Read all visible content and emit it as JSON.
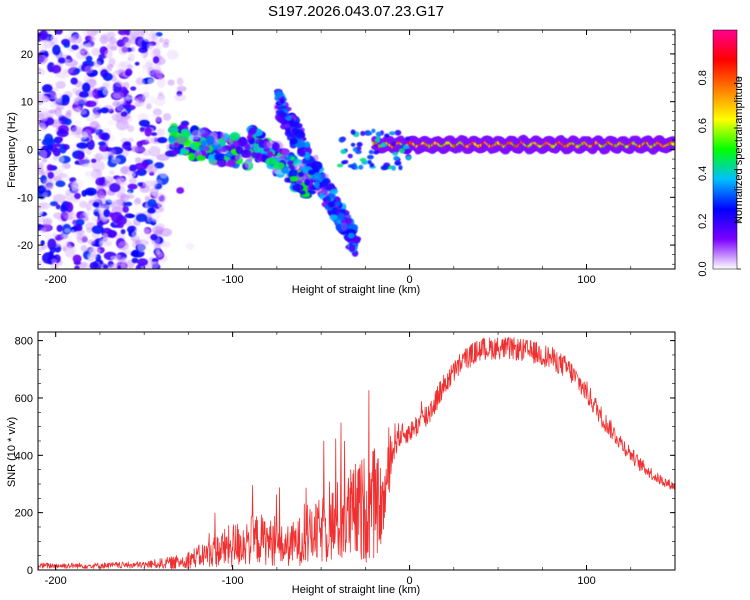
{
  "title": "S197.2026.043.07.23.G17",
  "chart_data": [
    {
      "type": "heatmap",
      "name": "spectrogram",
      "xlabel": "Height of straight line (km)",
      "ylabel": "Frequency (Hz)",
      "xlim": [
        -210,
        150
      ],
      "ylim": [
        -25,
        25
      ],
      "xticks": [
        -200,
        -100,
        0,
        100
      ],
      "yticks": [
        -20,
        -10,
        0,
        10,
        20
      ],
      "colorbar": {
        "label": "Normalized spectral amplitude",
        "range": [
          0,
          1
        ],
        "ticks": [
          "0.0",
          "0.2",
          "0.4",
          "0.6",
          "0.8"
        ],
        "colors": [
          "#ffffff",
          "#7b00ff",
          "#0000ff",
          "#00bfff",
          "#00ff00",
          "#ffff00",
          "#ff7f00",
          "#ff0000",
          "#ff0090"
        ]
      },
      "features": [
        {
          "description": "noise region",
          "x_range": [
            -210,
            -140
          ],
          "freq_range": [
            -25,
            25
          ],
          "amplitude": 0.15
        },
        {
          "description": "multipath tone",
          "x_range": [
            -135,
            -55
          ],
          "freq_center": [
            2,
            -3
          ],
          "amplitude": 0.4
        },
        {
          "description": "secondary branch",
          "x_range": [
            -75,
            -30
          ],
          "freq_center": [
            10,
            -20
          ],
          "amplitude": 0.25
        },
        {
          "description": "single tone",
          "x_range": [
            -20,
            150
          ],
          "freq_center": 1,
          "amplitude": 0.9
        }
      ]
    },
    {
      "type": "line",
      "name": "snr",
      "xlabel": "Height of straight line (km)",
      "ylabel": "SNR (10 * v/v)",
      "xlim": [
        -210,
        150
      ],
      "ylim": [
        0,
        830
      ],
      "xticks": [
        -200,
        -100,
        0,
        100
      ],
      "yticks": [
        0,
        200,
        400,
        600,
        800
      ],
      "color": "#f03030",
      "envelope": {
        "x": [
          -210,
          -180,
          -150,
          -130,
          -115,
          -100,
          -85,
          -70,
          -55,
          -40,
          -30,
          -20,
          -15,
          -12,
          -8,
          -5,
          0,
          10,
          20,
          30,
          40,
          50,
          60,
          70,
          80,
          90,
          100,
          110,
          120,
          130,
          140,
          150
        ],
        "mean": [
          15,
          15,
          18,
          28,
          55,
          85,
          110,
          80,
          120,
          170,
          200,
          230,
          220,
          340,
          460,
          470,
          480,
          540,
          650,
          730,
          770,
          775,
          770,
          760,
          740,
          700,
          620,
          520,
          440,
          370,
          320,
          290
        ],
        "amplitude": [
          10,
          10,
          12,
          25,
          45,
          80,
          90,
          70,
          100,
          150,
          180,
          200,
          120,
          100,
          60,
          40,
          35,
          50,
          40,
          40,
          40,
          40,
          40,
          40,
          40,
          40,
          40,
          35,
          30,
          25,
          20,
          15
        ]
      }
    }
  ]
}
